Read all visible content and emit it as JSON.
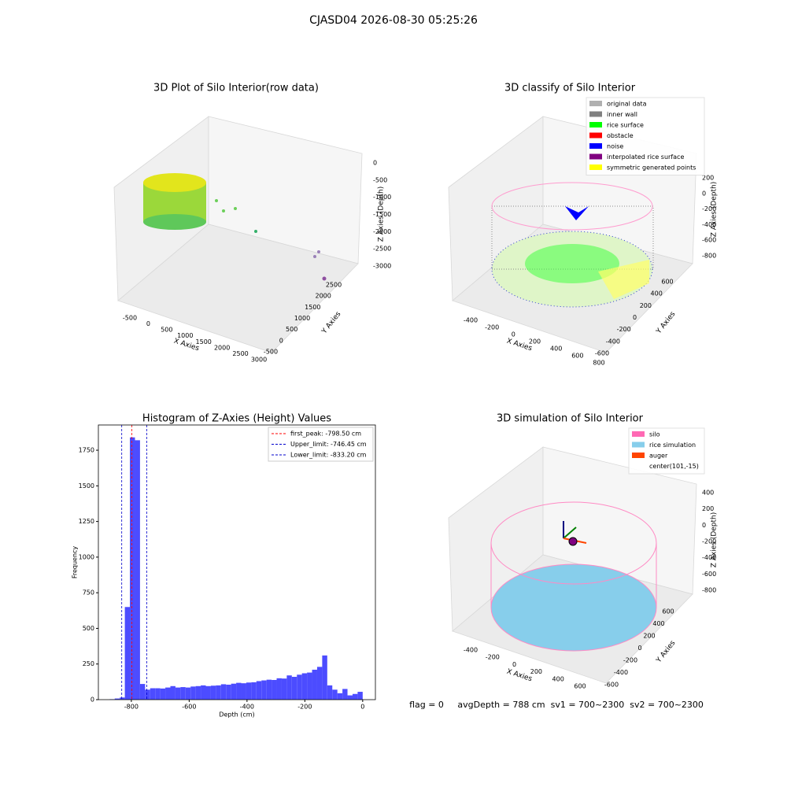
{
  "title": "CJASD04 2026-08-30 05:25:26",
  "footer": "flag = 0     avgDepth = 788 cm  sv1 = 700~2300  sv2 = 700~2300",
  "chart_data": [
    {
      "type": "scatter3d",
      "title": "3D Plot of Silo Interior(row data)",
      "xlabel": "X Axies",
      "ylabel": "Y Axies",
      "zlabel": "Z Axies (Depth)",
      "xticks": [
        -500,
        0,
        500,
        1000,
        1500,
        2000,
        2500,
        3000
      ],
      "yticks": [
        -500,
        0,
        500,
        1000,
        1500,
        2000,
        2500
      ],
      "zticks": [
        0,
        -500,
        -1000,
        -1500,
        -2000,
        -2500,
        -3000
      ]
    },
    {
      "type": "scatter3d",
      "title": "3D classify of Silo Interior",
      "xlabel": "X Axies",
      "ylabel": "Y Axies",
      "zlabel": "Z Axies (Depth)",
      "xticks": [
        -400,
        -200,
        0,
        200,
        400,
        600,
        800
      ],
      "yticks": [
        -600,
        -400,
        -200,
        0,
        200,
        400,
        600
      ],
      "zticks": [
        200,
        0,
        -200,
        -400,
        -600,
        -800
      ],
      "legend": [
        {
          "name": "original data",
          "color": "#b0b0b0"
        },
        {
          "name": "inner wall",
          "color": "#808080"
        },
        {
          "name": "rice surface",
          "color": "#00ff00"
        },
        {
          "name": "obstacle",
          "color": "#ff0000"
        },
        {
          "name": "noise",
          "color": "#0000ff"
        },
        {
          "name": "interpolated rice surface",
          "color": "#800080"
        },
        {
          "name": "symmetric generated points",
          "color": "#ffff00"
        }
      ]
    },
    {
      "type": "histogram",
      "title": "Histogram of Z-Axies (Height) Values",
      "xlabel": "Depth (cm)",
      "ylabel": "Frequency",
      "color": "#4c4cff",
      "bins": [
        -875,
        -857.5,
        -840,
        -822.5,
        -805,
        -787.5,
        -770,
        -752.5,
        -735,
        -717.5,
        -700,
        -682.5,
        -665,
        -647.5,
        -630,
        -612.5,
        -595,
        -577.5,
        -560,
        -542.5,
        -525,
        -507.5,
        -490,
        -472.5,
        -455,
        -437.5,
        -420,
        -402.5,
        -385,
        -367.5,
        -350,
        -332.5,
        -315,
        -297.5,
        -280,
        -262.5,
        -245,
        -227.5,
        -210,
        -192.5,
        -175,
        -157.5,
        -140,
        -122.5,
        -105,
        -87.5,
        -70,
        -52.5,
        -35,
        -17.5,
        0
      ],
      "counts": [
        3,
        8,
        15,
        650,
        1840,
        1820,
        110,
        70,
        80,
        80,
        78,
        85,
        95,
        85,
        88,
        85,
        92,
        95,
        100,
        95,
        98,
        100,
        108,
        105,
        112,
        118,
        115,
        120,
        122,
        130,
        135,
        140,
        138,
        150,
        148,
        170,
        160,
        175,
        185,
        190,
        210,
        230,
        310,
        100,
        70,
        45,
        75,
        30,
        40,
        55
      ],
      "xlim": [
        -914,
        44
      ],
      "ylim": [
        0,
        1927
      ],
      "xticks": [
        -800,
        -600,
        -400,
        -200,
        0
      ],
      "yticks": [
        0,
        250,
        500,
        750,
        1000,
        1250,
        1500,
        1750
      ],
      "vlines": [
        {
          "value": -798.5,
          "label": "first_peak: -798.50 cm",
          "color": "#ff0000"
        },
        {
          "value": -746.45,
          "label": "Upper_limit: -746.45 cm",
          "color": "#0000cc"
        },
        {
          "value": -833.2,
          "label": "Lower_limit: -833.20 cm",
          "color": "#0000cc"
        }
      ]
    },
    {
      "type": "surface3d",
      "title": "3D simulation of Silo Interior",
      "xlabel": "X Axies",
      "ylabel": "Y Axies",
      "zlabel": "Z Axies (Depth)",
      "xticks": [
        -400,
        -200,
        0,
        200,
        400,
        600
      ],
      "yticks": [
        -600,
        -400,
        -200,
        0,
        200,
        400,
        600
      ],
      "zticks": [
        400,
        200,
        0,
        -200,
        -400,
        -600,
        -800
      ],
      "legend": [
        {
          "name": "silo",
          "color": "#ff69b4"
        },
        {
          "name": "rice simulation",
          "color": "#87ceeb"
        },
        {
          "name": "auger",
          "color": "#ff4500"
        },
        {
          "name": "center(101,-15)"
        }
      ]
    }
  ]
}
